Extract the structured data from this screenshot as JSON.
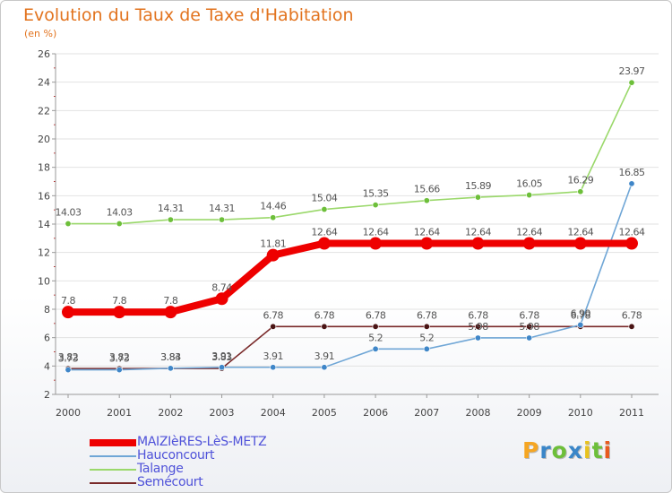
{
  "chart_data": {
    "type": "line",
    "title": "Evolution du Taux de Taxe d'Habitation",
    "ylabel": "(en %)",
    "xlabel": "",
    "x": [
      "2000",
      "2001",
      "2002",
      "2003",
      "2004",
      "2005",
      "2006",
      "2007",
      "2008",
      "2009",
      "2010",
      "2011"
    ],
    "ylim": [
      2,
      26
    ],
    "yticks": [
      "2",
      "4",
      "6",
      "8",
      "10",
      "12",
      "14",
      "16",
      "18",
      "20",
      "22",
      "24",
      "26"
    ],
    "grid": "horizontal",
    "legend_position": "bottom-left",
    "series": [
      {
        "name": "MAIZIèRES-LèS-METZ",
        "color": "#ee0000",
        "emphasis": true,
        "values": [
          7.8,
          7.8,
          7.8,
          8.74,
          11.81,
          12.64,
          12.64,
          12.64,
          12.64,
          12.64,
          12.64,
          12.64
        ],
        "labels": [
          "7.8",
          "7.8",
          "7.8",
          "8.74",
          "11.81",
          "12.64",
          "12.64",
          "12.64",
          "12.64",
          "12.64",
          "12.64",
          "12.64"
        ]
      },
      {
        "name": "Hauconcourt",
        "color": "#6fa6d6",
        "marker": "#3f86c8",
        "values": [
          3.73,
          3.73,
          3.84,
          3.91,
          3.91,
          3.91,
          5.2,
          5.2,
          5.98,
          5.98,
          6.9,
          16.85
        ],
        "labels": [
          "3.73",
          "3.73",
          "3.84",
          "3.91",
          "3.91",
          "3.91",
          "5.2",
          "5.2",
          "5.98",
          "5.98",
          "6.90",
          "16.85"
        ]
      },
      {
        "name": "Talange",
        "color": "#9ad86a",
        "marker": "#6dbf3a",
        "values": [
          14.03,
          14.03,
          14.31,
          14.31,
          14.46,
          15.04,
          15.35,
          15.66,
          15.89,
          16.05,
          16.29,
          23.97
        ],
        "labels": [
          "14.03",
          "14.03",
          "14.31",
          "14.31",
          "14.46",
          "15.04",
          "15.35",
          "15.66",
          "15.89",
          "16.05",
          "16.29",
          "23.97"
        ]
      },
      {
        "name": "Semécourt",
        "color": "#7a2a2a",
        "marker": "#4a1414",
        "values": [
          3.82,
          3.82,
          3.83,
          3.83,
          6.78,
          6.78,
          6.78,
          6.78,
          6.78,
          6.78,
          6.78,
          6.78
        ],
        "labels": [
          "3.82",
          "3.82",
          "3.83",
          "3.83",
          "6.78",
          "6.78",
          "6.78",
          "6.78",
          "6.78",
          "6.78",
          "6.78",
          "6.78"
        ]
      }
    ]
  },
  "brand": {
    "letters": [
      "P",
      "r",
      "o",
      "x",
      "i",
      "t",
      "i"
    ],
    "colors": [
      "#f5a623",
      "#3a86c8",
      "#6dbf3a",
      "#3a86c8",
      "#e8c21e",
      "#6dbf3a",
      "#e85a1e"
    ]
  }
}
